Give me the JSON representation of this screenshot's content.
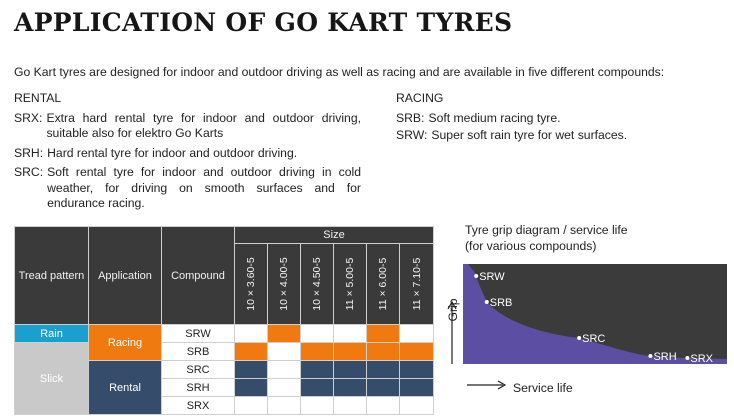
{
  "title": "APPLICATION OF GO KART TYRES",
  "intro": "Go Kart tyres are designed for indoor and outdoor driving as well as racing and are available in five different compounds:",
  "rental": {
    "heading": "RENTAL",
    "items": [
      {
        "code": "SRX:",
        "desc": "Extra hard rental tyre for indoor and outdoor driving, suitable also for elektro Go Karts"
      },
      {
        "code": "SRH:",
        "desc": "Hard rental tyre for indoor and outdoor driving."
      },
      {
        "code": "SRC:",
        "desc": "Soft rental tyre for indoor and outdoor driving in cold weather, for driving on smooth surfaces and for endurance racing."
      }
    ]
  },
  "racing": {
    "heading": "RACING",
    "items": [
      {
        "code": "SRB:",
        "desc": "Soft medium racing tyre."
      },
      {
        "code": "SRW:",
        "desc": "Super soft rain tyre for wet surfaces."
      }
    ]
  },
  "table": {
    "headers": {
      "tread": "Tread pattern",
      "application": "Application",
      "compound": "Compound",
      "size": "Size"
    },
    "sizes": [
      "10 × 3.60-5",
      "10 × 4.00-5",
      "10 × 4.50-5",
      "11 × 5.00-5",
      "11 × 6.00-5",
      "11 × 7.10-5"
    ],
    "tread_rain": "Rain",
    "tread_slick": "Slick",
    "app_racing": "Racing",
    "app_rental": "Rental",
    "rows": [
      {
        "compound": "SRW",
        "cells": [
          "white",
          "orange",
          "white",
          "white",
          "orange",
          "white"
        ]
      },
      {
        "compound": "SRB",
        "cells": [
          "orange",
          "white",
          "orange",
          "orange",
          "orange",
          "orange"
        ]
      },
      {
        "compound": "SRC",
        "cells": [
          "navy",
          "white",
          "navy",
          "navy",
          "navy",
          "navy"
        ]
      },
      {
        "compound": "SRH",
        "cells": [
          "navy",
          "white",
          "navy",
          "navy",
          "navy",
          "navy"
        ]
      },
      {
        "compound": "SRX",
        "cells": [
          "white",
          "white",
          "white",
          "white",
          "white",
          "white"
        ]
      }
    ]
  },
  "diagram": {
    "title_line1": "Tyre grip diagram / service life",
    "title_line2": "(for various compounds)",
    "ylabel": "Grip",
    "xlabel": "Service life",
    "colors": {
      "fill": "#5b4ea3",
      "background": "#3b3b3b"
    },
    "points": [
      {
        "label": "SRW",
        "grip": 0.88,
        "life": 0.05
      },
      {
        "label": "SRB",
        "grip": 0.62,
        "life": 0.09
      },
      {
        "label": "SRC",
        "grip": 0.26,
        "life": 0.44
      },
      {
        "label": "SRH",
        "grip": 0.08,
        "life": 0.71
      },
      {
        "label": "SRX",
        "grip": 0.06,
        "life": 0.85
      }
    ]
  }
}
